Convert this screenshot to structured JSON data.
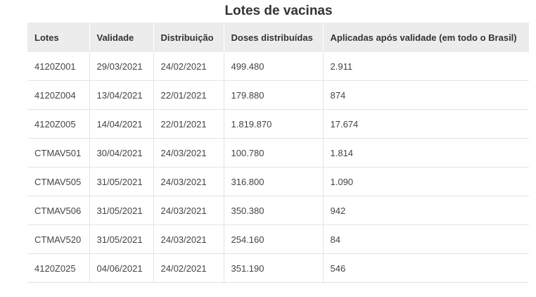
{
  "title": "Lotes de vacinas",
  "headers": [
    "Lotes",
    "Validade",
    "Distribuição",
    "Doses distribuídas",
    "Aplicadas após validade (em todo o Brasil)"
  ],
  "rows": [
    [
      "4120Z001",
      "29/03/2021",
      "24/02/2021",
      "499.480",
      "2.911"
    ],
    [
      "4120Z004",
      "13/04/2021",
      "22/01/2021",
      "179.880",
      "874"
    ],
    [
      "4120Z005",
      "14/04/2021",
      "22/01/2021",
      "1.819.870",
      "17.674"
    ],
    [
      "CTMAV501",
      "30/04/2021",
      "24/03/2021",
      "100.780",
      "1.814"
    ],
    [
      "CTMAV505",
      "31/05/2021",
      "24/03/2021",
      "316.800",
      "1.090"
    ],
    [
      "CTMAV506",
      "31/05/2021",
      "24/03/2021",
      "350.380",
      "942"
    ],
    [
      "CTMAV520",
      "31/05/2021",
      "24/03/2021",
      "254.160",
      "84"
    ],
    [
      "4120Z025",
      "04/06/2021",
      "24/02/2021",
      "351.190",
      "546"
    ]
  ]
}
